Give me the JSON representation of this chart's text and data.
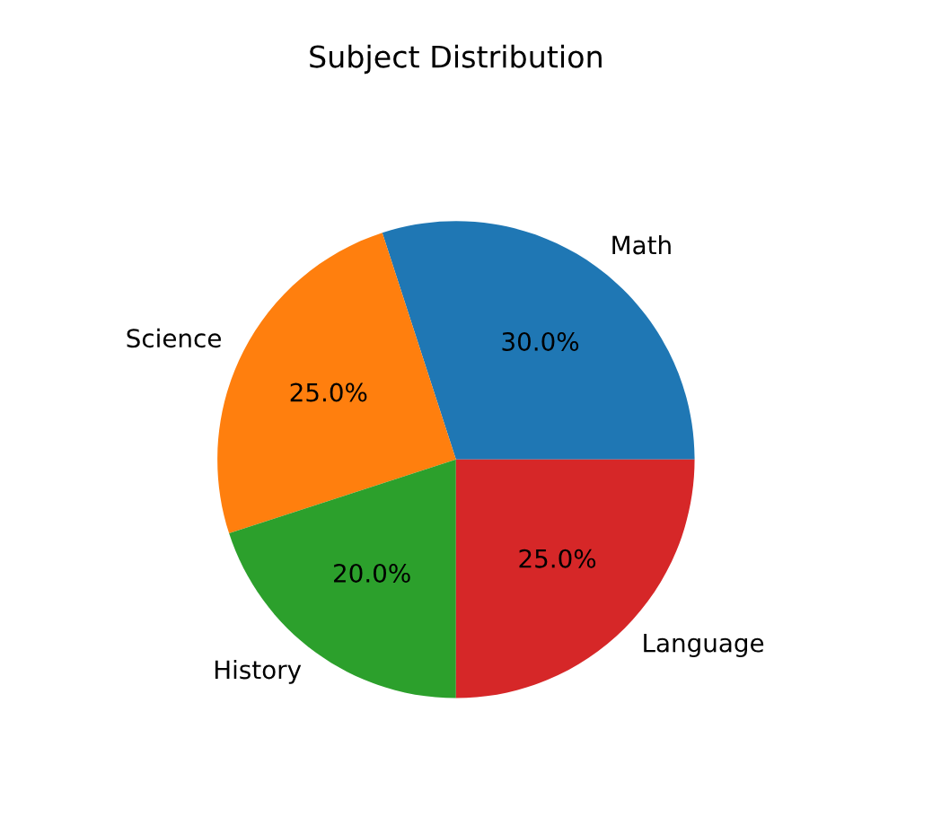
{
  "chart_data": {
    "type": "pie",
    "title": "Subject Distribution",
    "categories": [
      "Math",
      "Science",
      "History",
      "Language"
    ],
    "values": [
      30,
      25,
      20,
      25
    ],
    "colors": [
      "#1f77b4",
      "#ff7f0e",
      "#2ca02c",
      "#d62728"
    ],
    "value_labels": [
      "30.0%",
      "25.0%",
      "20.0%",
      "25.0%"
    ]
  }
}
